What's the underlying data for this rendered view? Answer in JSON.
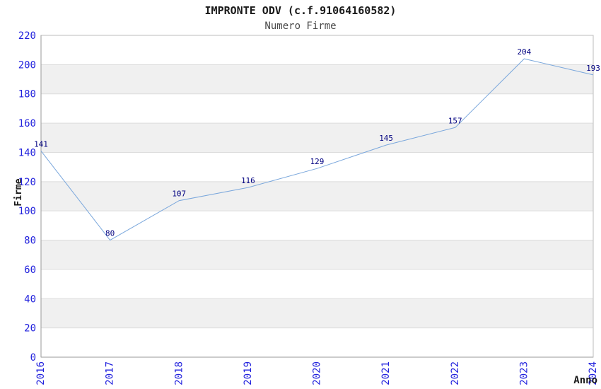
{
  "chart": {
    "title": "IMPRONTE ODV (c.f.91064160582)",
    "subtitle": "Numero Firme",
    "ylabel": "Firme",
    "xlabel": "Anno"
  },
  "chart_data": {
    "type": "line",
    "title": "IMPRONTE ODV (c.f.91064160582)",
    "subtitle": "Numero Firme",
    "xlabel": "Anno",
    "ylabel": "Firme",
    "categories": [
      "2016",
      "2017",
      "2018",
      "2019",
      "2020",
      "2021",
      "2022",
      "2023",
      "2024"
    ],
    "series": [
      {
        "name": "Numero Firme",
        "values": [
          141,
          80,
          107,
          116,
          129,
          145,
          157,
          204,
          193
        ]
      }
    ],
    "ylim": [
      0,
      220
    ],
    "ytick_step": 20,
    "grid": "horizontal",
    "alternating_bands": true,
    "legend": "none",
    "point_labels_visible": true,
    "x_tick_rotation_degrees": 90
  },
  "colors": {
    "line": "#7aa7dc",
    "tick_label": "#2222dd",
    "value_label": "#000080",
    "band": "#f0f0f0",
    "gridline": "#dcdcdc",
    "plot_border": "#bdbdbd",
    "axis_line": "#9a9a9a",
    "background": "#ffffff"
  }
}
